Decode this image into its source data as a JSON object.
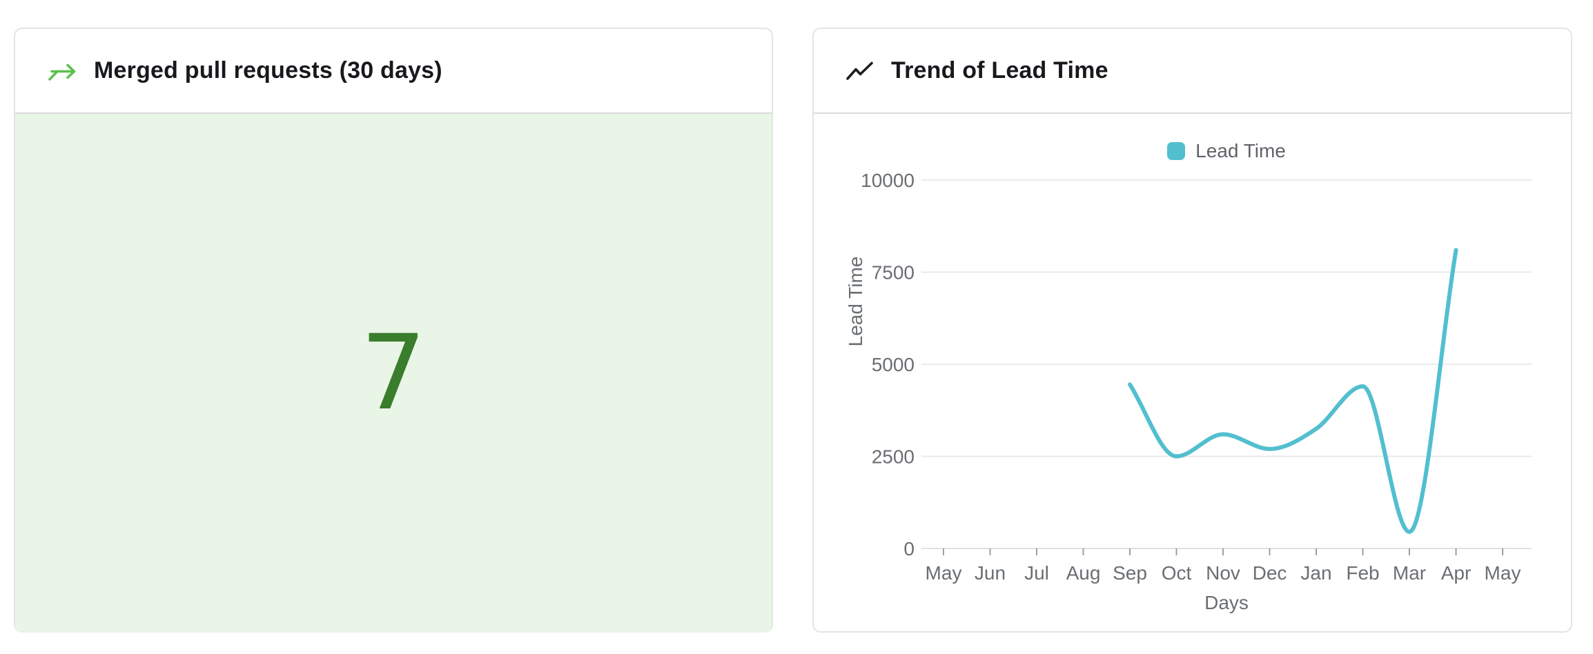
{
  "left_card": {
    "title": "Merged pull requests (30 days)",
    "value": "7",
    "icon": "git-merge-arrow",
    "colors": {
      "icon_green": "#5cc14e",
      "value_green": "#3a7d2c",
      "value_bg": "#e9f5e6"
    }
  },
  "right_card": {
    "title": "Trend of Lead Time",
    "icon": "trend-up"
  },
  "chart_data": {
    "type": "line",
    "title": "Trend of Lead Time",
    "xlabel": "Days",
    "ylabel": "Lead Time",
    "legend": {
      "position": "top",
      "entries": [
        {
          "label": "Lead Time",
          "color": "#52bfce"
        }
      ]
    },
    "categories": [
      "May",
      "Jun",
      "Jul",
      "Aug",
      "Sep",
      "Oct",
      "Nov",
      "Dec",
      "Jan",
      "Feb",
      "Mar",
      "Apr",
      "May"
    ],
    "series": [
      {
        "name": "Lead Time",
        "color": "#52bfce",
        "values": [
          null,
          null,
          null,
          null,
          4450,
          2500,
          3100,
          2700,
          3250,
          4400,
          450,
          8100,
          null
        ]
      }
    ],
    "ylim": [
      0,
      10000
    ],
    "yticks": [
      0,
      2500,
      5000,
      7500,
      10000
    ],
    "grid": true,
    "curve": "monotone",
    "colors": {
      "grid": "#e9eaec",
      "axis_line": "#dfe1e4",
      "tick_mark": "#9aa0a6",
      "axis_text": "#6a6e72"
    }
  }
}
